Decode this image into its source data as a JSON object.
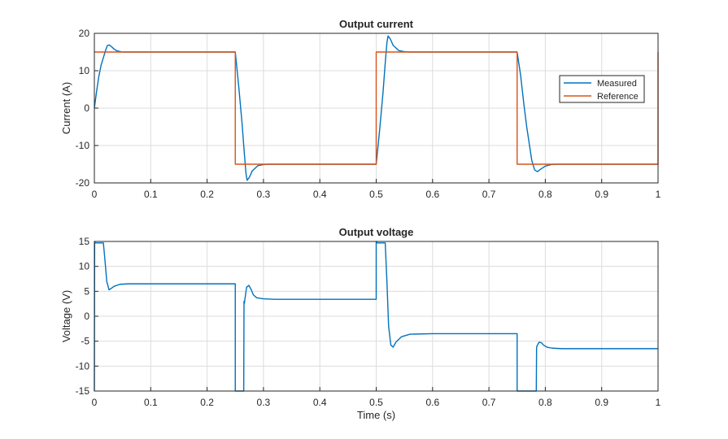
{
  "chart_data": [
    {
      "type": "line",
      "title": "Output current",
      "xlabel": "",
      "ylabel": "Current (A)",
      "xlim": [
        0,
        1
      ],
      "ylim": [
        -20,
        20
      ],
      "xticks": [
        "0",
        "0.1",
        "0.2",
        "0.3",
        "0.4",
        "0.5",
        "0.6",
        "0.7",
        "0.8",
        "0.9",
        "1"
      ],
      "yticks": [
        "-20",
        "-10",
        "0",
        "10",
        "20"
      ],
      "xtick_values": [
        0,
        0.1,
        0.2,
        0.3,
        0.4,
        0.5,
        0.6,
        0.7,
        0.8,
        0.9,
        1
      ],
      "ytick_values": [
        -20,
        -10,
        0,
        10,
        20
      ],
      "grid": true,
      "legend": "right",
      "series": [
        {
          "name": "Measured",
          "color": "#0072BD",
          "x": [
            0,
            0.004,
            0.008,
            0.012,
            0.016,
            0.02,
            0.023,
            0.026,
            0.03,
            0.035,
            0.04,
            0.05,
            0.06,
            0.25,
            0.256,
            0.262,
            0.266,
            0.269,
            0.271,
            0.275,
            0.28,
            0.29,
            0.3,
            0.31,
            0.5,
            0.506,
            0.512,
            0.516,
            0.519,
            0.521,
            0.525,
            0.53,
            0.54,
            0.55,
            0.56,
            0.75,
            0.756,
            0.762,
            0.767,
            0.772,
            0.776,
            0.781,
            0.786,
            0.79,
            0.8,
            0.81,
            0.82,
            1
          ],
          "y": [
            0,
            4.5,
            8.5,
            11.5,
            13.5,
            15.5,
            16.7,
            16.9,
            16.5,
            15.8,
            15.3,
            15.0,
            15.0,
            15.0,
            6,
            -4,
            -12,
            -17.5,
            -19.3,
            -18.5,
            -16.8,
            -15.4,
            -15.1,
            -15.0,
            -15.0,
            -6,
            4,
            12,
            17.5,
            19.3,
            18.5,
            16.8,
            15.4,
            15.1,
            15.0,
            15.0,
            9,
            1,
            -5,
            -10,
            -14,
            -16.5,
            -17.0,
            -16.5,
            -15.5,
            -15.1,
            -15.0,
            -15.0
          ]
        },
        {
          "name": "Reference",
          "color": "#D95319",
          "x": [
            0,
            0.25,
            0.25,
            0.5,
            0.5,
            0.75,
            0.75,
            1,
            1
          ],
          "y": [
            15,
            15,
            -15,
            -15,
            15,
            15,
            -15,
            -15,
            15
          ]
        }
      ]
    },
    {
      "type": "line",
      "title": "Output voltage",
      "xlabel": "Time (s)",
      "ylabel": "Voltage (V)",
      "xlim": [
        0,
        1
      ],
      "ylim": [
        -15,
        15
      ],
      "xticks": [
        "0",
        "0.1",
        "0.2",
        "0.3",
        "0.4",
        "0.5",
        "0.6",
        "0.7",
        "0.8",
        "0.9",
        "1"
      ],
      "yticks": [
        "-15",
        "-10",
        "-5",
        "0",
        "5",
        "10",
        "15"
      ],
      "xtick_values": [
        0,
        0.1,
        0.2,
        0.3,
        0.4,
        0.5,
        0.6,
        0.7,
        0.8,
        0.9,
        1
      ],
      "ytick_values": [
        -15,
        -10,
        -5,
        0,
        5,
        10,
        15
      ],
      "grid": true,
      "series": [
        {
          "name": "",
          "color": "#0072BD",
          "x": [
            0,
            0.0005,
            0.001,
            0.016,
            0.019,
            0.022,
            0.026,
            0.03,
            0.035,
            0.045,
            0.06,
            0.1,
            0.25,
            0.25,
            0.2505,
            0.265,
            0.2655,
            0.266,
            0.27,
            0.274,
            0.278,
            0.282,
            0.288,
            0.3,
            0.32,
            0.5,
            0.5,
            0.5005,
            0.5005,
            0.501,
            0.516,
            0.519,
            0.522,
            0.526,
            0.53,
            0.535,
            0.545,
            0.56,
            0.6,
            0.75,
            0.75,
            0.7505,
            0.784,
            0.7845,
            0.785,
            0.789,
            0.793,
            0.797,
            0.803,
            0.812,
            0.83,
            1
          ],
          "y": [
            -15,
            15,
            14.7,
            14.7,
            11,
            7,
            5.3,
            5.6,
            6.0,
            6.4,
            6.5,
            6.5,
            6.5,
            -15,
            -15,
            -15,
            3,
            2.5,
            5.8,
            6.2,
            5.4,
            4.3,
            3.7,
            3.5,
            3.4,
            3.4,
            15,
            15,
            15,
            14.7,
            14.7,
            7,
            -2,
            -5.8,
            -6.2,
            -5.2,
            -4.1,
            -3.6,
            -3.5,
            -3.5,
            -15,
            -15,
            -15,
            -6.5,
            -6.0,
            -5.2,
            -5.3,
            -5.8,
            -6.2,
            -6.4,
            -6.5,
            -6.5
          ]
        }
      ]
    }
  ]
}
